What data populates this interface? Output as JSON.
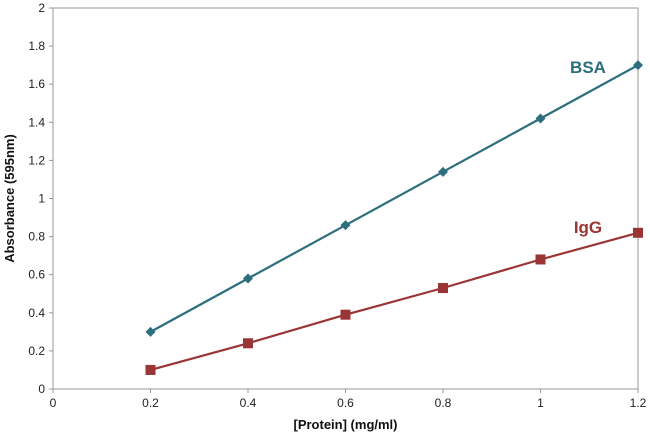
{
  "chart_data": {
    "type": "line",
    "xlabel": "[Protein] (mg/ml)",
    "ylabel": "Absorbance (595nm)",
    "xlim": [
      0,
      1.2
    ],
    "ylim": [
      0,
      2
    ],
    "x_ticks": [
      "0",
      "0.2",
      "0.4",
      "0.6",
      "0.8",
      "1",
      "1.2"
    ],
    "y_ticks": [
      "0",
      "0.2",
      "0.4",
      "0.6",
      "0.8",
      "1",
      "1.2",
      "1.4",
      "1.6",
      "1.8",
      "2"
    ],
    "grid": false,
    "series": [
      {
        "name": "BSA",
        "color": "#2c6e7e",
        "marker": "diamond",
        "x": [
          0.2,
          0.4,
          0.6,
          0.8,
          1.0,
          1.2
        ],
        "y": [
          0.3,
          0.58,
          0.86,
          1.14,
          1.42,
          1.7
        ]
      },
      {
        "name": "IgG",
        "color": "#9b3434",
        "marker": "square",
        "x": [
          0.2,
          0.4,
          0.6,
          0.8,
          1.0,
          1.2
        ],
        "y": [
          0.1,
          0.24,
          0.39,
          0.53,
          0.68,
          0.82
        ]
      }
    ]
  }
}
